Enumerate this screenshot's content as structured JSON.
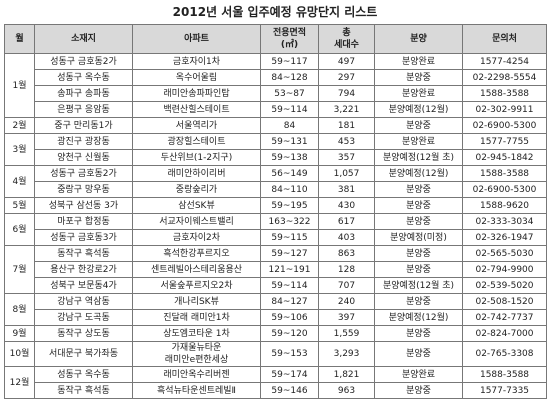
{
  "header": {
    "title": "2012년 서울 입주예정 유망단지 리스트"
  },
  "table": {
    "columns": [
      "월",
      "소재지",
      "아파트",
      "전용면적\n(㎡)",
      "총\n세대수",
      "분양",
      "문의처"
    ],
    "groups": [
      {
        "month": "1월",
        "rows": [
          [
            "성동구 금호동2가",
            "금호자이1차",
            "59~117",
            "497",
            "분양완료",
            "1577-4254"
          ],
          [
            "성동구 옥수동",
            "옥수어울림",
            "84~128",
            "297",
            "분양중",
            "02-2298-5554"
          ],
          [
            "송파구 송파동",
            "래미안송파파인탑",
            "53~87",
            "794",
            "분양완료",
            "1588-3588"
          ],
          [
            "은평구 응암동",
            "백련산힐스테이트",
            "59~114",
            "3,221",
            "분양예정(12월)",
            "02-302-9911"
          ]
        ]
      },
      {
        "month": "2월",
        "rows": [
          [
            "중구 만리동1가",
            "서울역리가",
            "84",
            "181",
            "분양중",
            "02-6900-5300"
          ]
        ]
      },
      {
        "month": "3월",
        "rows": [
          [
            "광진구 광장동",
            "광장힐스테이트",
            "59~131",
            "453",
            "분양완료",
            "1577-7755"
          ],
          [
            "양천구 신월동",
            "두산위브(1-2지구)",
            "59~138",
            "357",
            "분양예정(12월 초)",
            "02-945-1842"
          ]
        ]
      },
      {
        "month": "4월",
        "rows": [
          [
            "성동구 금호동2가",
            "래미안하이리버",
            "56~149",
            "1,057",
            "분양예정(12월)",
            "1588-3588"
          ],
          [
            "중랑구 망우동",
            "중랑숲리가",
            "84~110",
            "381",
            "분양중",
            "02-6900-5300"
          ]
        ]
      },
      {
        "month": "5월",
        "rows": [
          [
            "성북구 삼선동 3가",
            "삼선SK뷰",
            "59~195",
            "430",
            "분양중",
            "1588-9620"
          ]
        ]
      },
      {
        "month": "6월",
        "rows": [
          [
            "마포구 합정동",
            "서교자이웨스트밸리",
            "163~322",
            "617",
            "분양중",
            "02-333-3034"
          ],
          [
            "성동구 금호동3가",
            "금호자이2차",
            "59~115",
            "403",
            "분양예정(미정)",
            "02-326-1947"
          ]
        ]
      },
      {
        "month": "7월",
        "rows": [
          [
            "동작구 흑석동",
            "흑석한강푸르지오",
            "59~127",
            "863",
            "분양중",
            "02-565-5030"
          ],
          [
            "용산구 한강로2가",
            "센트레빌아스테리움용산",
            "121~191",
            "128",
            "분양중",
            "02-794-9900"
          ],
          [
            "성북구 보문동4가",
            "서울숲푸르지오2차",
            "59~114",
            "707",
            "분양예정(12월 초)",
            "02-539-5020"
          ]
        ]
      },
      {
        "month": "8월",
        "rows": [
          [
            "강남구 역삼동",
            "개나리SK뷰",
            "84~127",
            "240",
            "분양중",
            "02-508-1520"
          ],
          [
            "강남구 도곡동",
            "진달래 래미안1차",
            "59~106",
            "397",
            "분양예정(12월)",
            "02-742-7737"
          ]
        ]
      },
      {
        "month": "9월",
        "rows": [
          [
            "동작구 상도동",
            "상도엠코타운 1차",
            "59~120",
            "1,559",
            "분양중",
            "02-824-7000"
          ]
        ]
      },
      {
        "month": "10월",
        "rows": [
          [
            "서대문구 북가좌동",
            "가재울뉴타운\n래미안e편한세상",
            "59~153",
            "3,293",
            "분양중",
            "02-765-3308"
          ]
        ]
      },
      {
        "month": "12월",
        "rows": [
          [
            "성동구 옥수동",
            "래미안옥수리버젠",
            "59~174",
            "1,821",
            "분양완료",
            "1588-3588"
          ],
          [
            "동작구 흑석동",
            "흑석뉴타운센트레빌Ⅱ",
            "59~146",
            "963",
            "분양중",
            "1577-7335"
          ]
        ]
      }
    ]
  }
}
